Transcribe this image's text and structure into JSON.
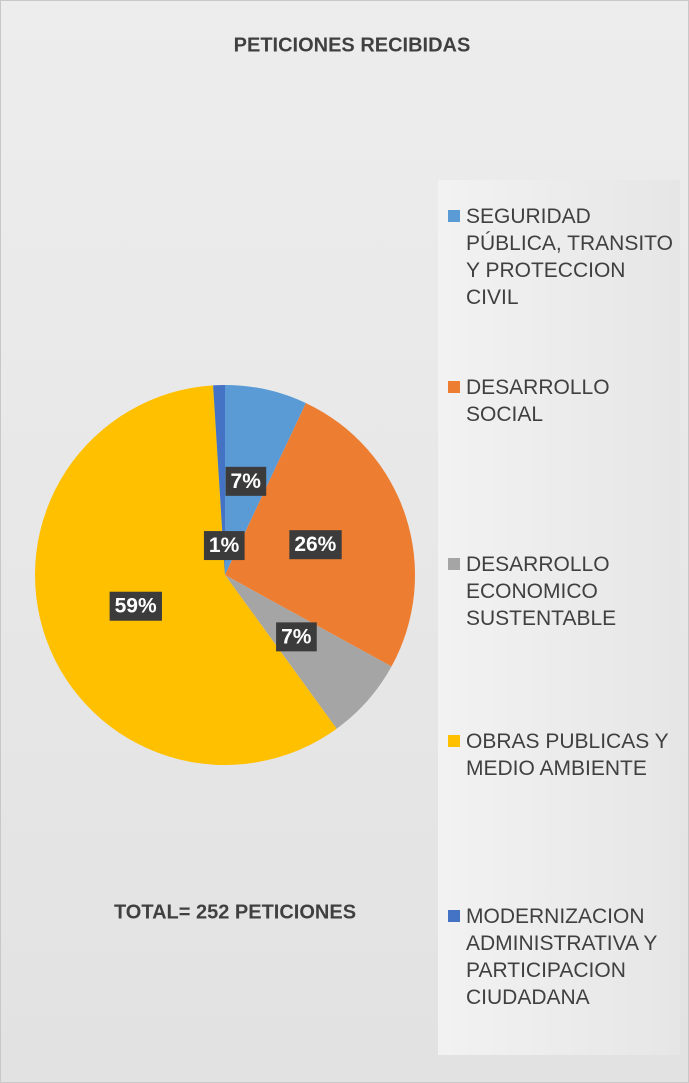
{
  "chart_data": {
    "type": "pie",
    "title": "PETICIONES RECIBIDAS",
    "annotation": "TOTAL= 252 PETICIONES",
    "categories": [
      "SEGURIDAD PÚBLICA, TRANSITO Y PROTECCION CIVIL",
      "DESARROLLO SOCIAL",
      "DESARROLLO ECONOMICO SUSTENTABLE",
      "OBRAS PUBLICAS Y MEDIO AMBIENTE",
      "MODERNIZACION ADMINISTRATIVA Y PARTICIPACION CIUDADANA"
    ],
    "values": [
      7,
      26,
      7,
      59,
      1
    ],
    "value_labels": [
      "7%",
      "26%",
      "7%",
      "59%",
      "1%"
    ],
    "colors": [
      "#5b9bd5",
      "#ed7d31",
      "#a5a5a5",
      "#ffc000",
      "#4472c4"
    ],
    "legend": "right"
  }
}
